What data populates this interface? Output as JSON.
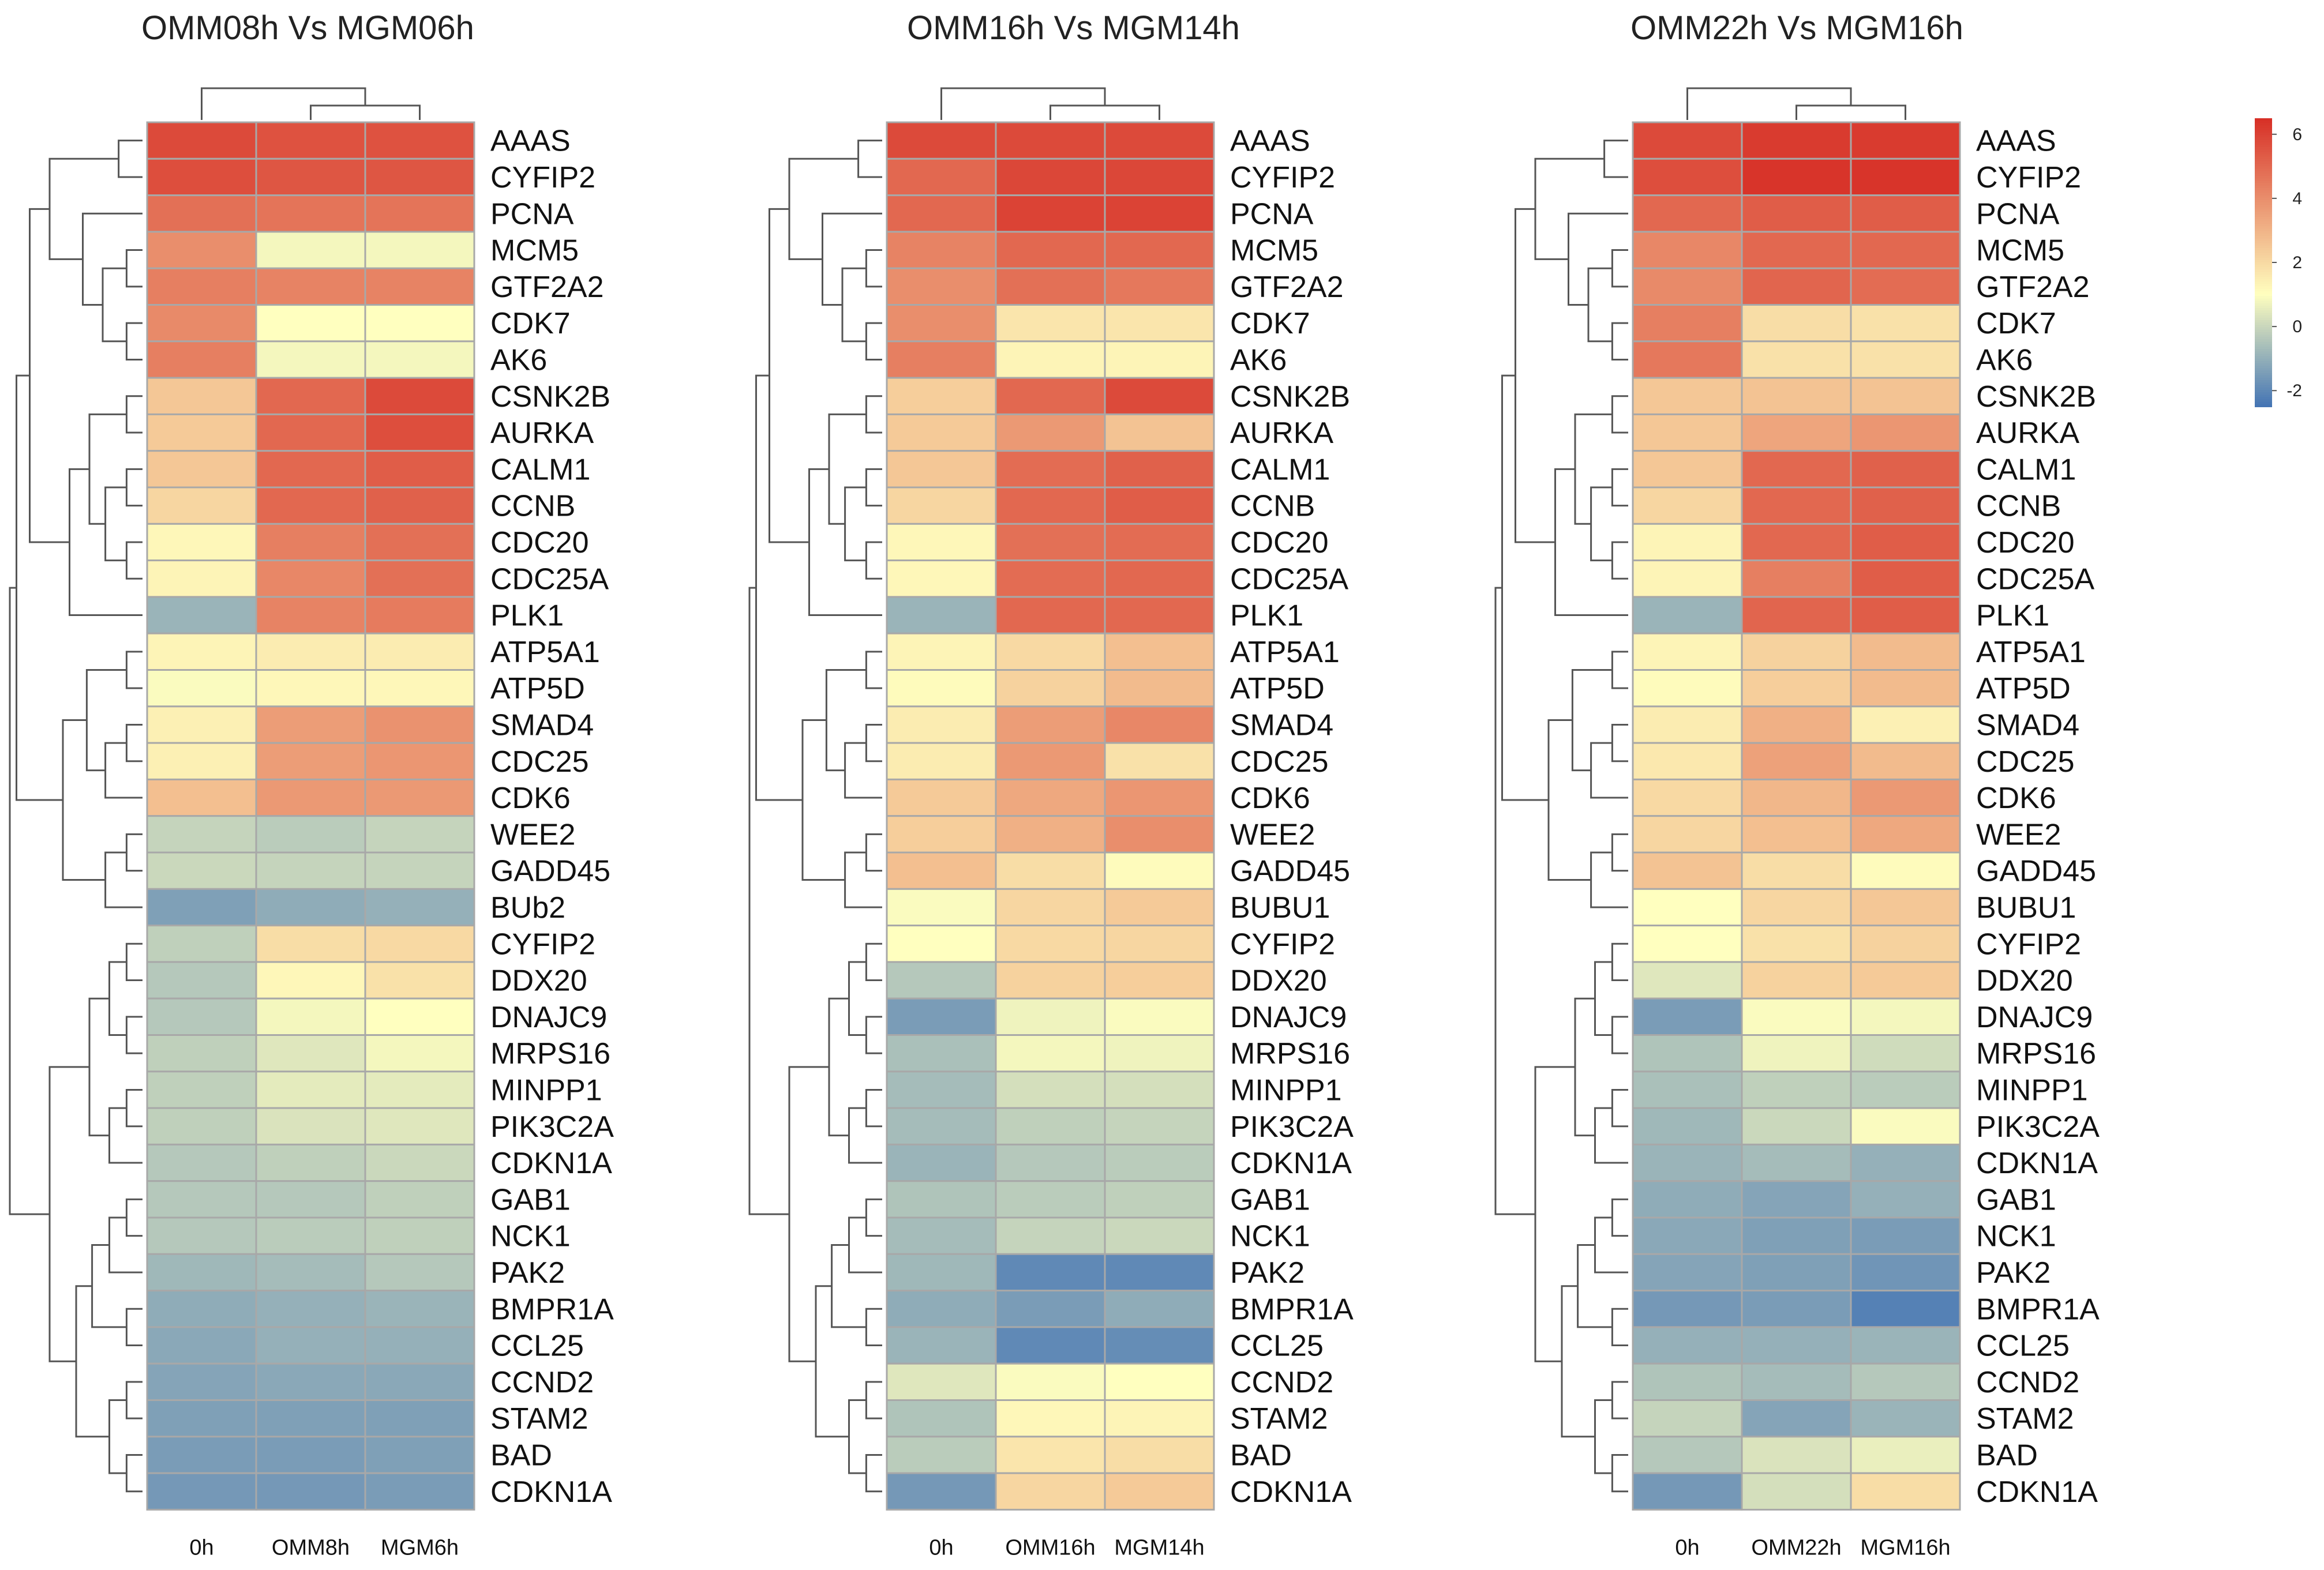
{
  "chart_data": [
    {
      "type": "heatmap",
      "title": "OMM08h Vs MGM06h",
      "columns": [
        "0h",
        "OMM8h",
        "MGM6h"
      ],
      "rows": [
        "AAAS",
        "CYFIP2",
        "PCNA",
        "MCM5",
        "GTF2A2",
        "CDK7",
        "AK6",
        "CSNK2B",
        "AURKA",
        "CALM1",
        "CCNB",
        "CDC20",
        "CDC25A",
        "PLK1",
        "ATP5A1",
        "ATP5D",
        "SMAD4",
        "CDC25",
        "CDK6",
        "WEE2",
        "GADD45",
        "BUb2",
        "CYFIP2",
        "DDX20",
        "DNAJC9",
        "MRPS16",
        "MINPP1",
        "PIK3C2A",
        "CDKN1A",
        "GAB1",
        "NCK1",
        "PAK2",
        "BMPR1A",
        "CCL25",
        "CCND2",
        "STAM2",
        "BAD",
        "CDKN1A"
      ],
      "values": [
        [
          5.8,
          5.6,
          5.6
        ],
        [
          5.7,
          5.5,
          5.5
        ],
        [
          4.8,
          4.7,
          4.7
        ],
        [
          4.0,
          0.8,
          0.8
        ],
        [
          4.4,
          4.3,
          4.3
        ],
        [
          4.1,
          1.0,
          1.0
        ],
        [
          4.4,
          0.8,
          0.8
        ],
        [
          2.5,
          5.0,
          5.8
        ],
        [
          2.4,
          5.0,
          5.7
        ],
        [
          2.5,
          5.0,
          5.3
        ],
        [
          2.1,
          5.0,
          5.2
        ],
        [
          1.2,
          4.4,
          4.8
        ],
        [
          1.3,
          4.2,
          4.8
        ],
        [
          -0.9,
          4.3,
          4.5
        ],
        [
          1.3,
          1.5,
          1.5
        ],
        [
          0.9,
          1.2,
          1.2
        ],
        [
          1.4,
          3.6,
          3.9
        ],
        [
          1.4,
          3.6,
          3.8
        ],
        [
          2.7,
          3.7,
          3.7
        ],
        [
          -0.1,
          -0.3,
          -0.1
        ],
        [
          0.0,
          -0.1,
          -0.1
        ],
        [
          -1.4,
          -1.1,
          -1.0
        ],
        [
          -0.2,
          1.9,
          2.0
        ],
        [
          -0.4,
          1.2,
          1.8
        ],
        [
          -0.4,
          0.8,
          1.0
        ],
        [
          -0.2,
          0.4,
          0.8
        ],
        [
          -0.2,
          0.5,
          0.5
        ],
        [
          -0.2,
          0.3,
          0.4
        ],
        [
          -0.4,
          -0.2,
          0.0
        ],
        [
          -0.4,
          -0.4,
          -0.2
        ],
        [
          -0.4,
          -0.3,
          -0.2
        ],
        [
          -0.8,
          -0.7,
          -0.4
        ],
        [
          -1.1,
          -1.0,
          -0.9
        ],
        [
          -1.2,
          -1.0,
          -1.0
        ],
        [
          -1.3,
          -1.2,
          -1.2
        ],
        [
          -1.4,
          -1.4,
          -1.4
        ],
        [
          -1.5,
          -1.5,
          -1.4
        ],
        [
          -1.6,
          -1.6,
          -1.5
        ]
      ]
    },
    {
      "type": "heatmap",
      "title": "OMM16h Vs MGM14h",
      "columns": [
        "0h",
        "OMM16h",
        "MGM14h"
      ],
      "rows": [
        "AAAS",
        "CYFIP2",
        "PCNA",
        "MCM5",
        "GTF2A2",
        "CDK7",
        "AK6",
        "CSNK2B",
        "AURKA",
        "CALM1",
        "CCNB",
        "CDC20",
        "CDC25A",
        "PLK1",
        "ATP5A1",
        "ATP5D",
        "SMAD4",
        "CDC25",
        "CDK6",
        "WEE2",
        "GADD45",
        "BUBU1",
        "CYFIP2",
        "DDX20",
        "DNAJC9",
        "MRPS16",
        "MINPP1",
        "PIK3C2A",
        "CDKN1A",
        "GAB1",
        "NCK1",
        "PAK2",
        "BMPR1A",
        "CCL25",
        "CCND2",
        "STAM2",
        "BAD",
        "CDKN1A"
      ],
      "values": [
        [
          5.8,
          5.8,
          5.8
        ],
        [
          5.0,
          5.9,
          5.9
        ],
        [
          5.0,
          6.0,
          6.0
        ],
        [
          4.3,
          5.0,
          5.0
        ],
        [
          4.0,
          4.8,
          4.6
        ],
        [
          4.0,
          1.7,
          1.7
        ],
        [
          4.4,
          1.3,
          1.3
        ],
        [
          2.3,
          5.0,
          5.8
        ],
        [
          2.4,
          3.7,
          2.6
        ],
        [
          2.5,
          4.9,
          5.2
        ],
        [
          2.1,
          5.0,
          5.3
        ],
        [
          1.2,
          4.8,
          4.9
        ],
        [
          1.2,
          4.9,
          5.0
        ],
        [
          -0.9,
          5.0,
          5.0
        ],
        [
          1.3,
          2.0,
          2.7
        ],
        [
          1.1,
          2.2,
          2.8
        ],
        [
          1.5,
          3.6,
          4.2
        ],
        [
          1.5,
          3.7,
          1.8
        ],
        [
          2.4,
          3.3,
          3.8
        ],
        [
          2.3,
          3.1,
          4.0
        ],
        [
          2.7,
          1.9,
          1.1
        ],
        [
          0.9,
          2.1,
          2.4
        ],
        [
          1.0,
          2.0,
          2.1
        ],
        [
          -0.4,
          2.2,
          2.3
        ],
        [
          -1.5,
          0.7,
          0.9
        ],
        [
          -0.6,
          0.8,
          0.7
        ],
        [
          -0.7,
          0.2,
          0.2
        ],
        [
          -0.7,
          -0.2,
          -0.1
        ],
        [
          -0.9,
          -0.4,
          -0.3
        ],
        [
          -0.5,
          -0.3,
          -0.2
        ],
        [
          -0.7,
          -0.1,
          0.0
        ],
        [
          -0.8,
          -2.0,
          -2.0
        ],
        [
          -1.1,
          -1.5,
          -1.1
        ],
        [
          -0.9,
          -2.0,
          -1.9
        ],
        [
          0.4,
          0.9,
          1.0
        ],
        [
          -0.5,
          1.2,
          1.3
        ],
        [
          -0.3,
          1.7,
          1.9
        ],
        [
          -1.6,
          2.1,
          2.4
        ]
      ]
    },
    {
      "type": "heatmap",
      "title": "OMM22h Vs MGM16h",
      "columns": [
        "0h",
        "OMM22h",
        "MGM16h"
      ],
      "rows": [
        "AAAS",
        "CYFIP2",
        "PCNA",
        "MCM5",
        "GTF2A2",
        "CDK7",
        "AK6",
        "CSNK2B",
        "AURKA",
        "CALM1",
        "CCNB",
        "CDC20",
        "CDC25A",
        "PLK1",
        "ATP5A1",
        "ATP5D",
        "SMAD4",
        "CDC25",
        "CDK6",
        "WEE2",
        "GADD45",
        "BUBU1",
        "CYFIP2",
        "DDX20",
        "DNAJC9",
        "MRPS16",
        "MINPP1",
        "PIK3C2A",
        "CDKN1A",
        "GAB1",
        "NCK1",
        "PAK2",
        "BMPR1A",
        "CCL25",
        "CCND2",
        "STAM2",
        "BAD",
        "CDKN1A"
      ],
      "values": [
        [
          5.8,
          6.2,
          6.2
        ],
        [
          5.7,
          6.4,
          6.4
        ],
        [
          5.0,
          5.3,
          5.3
        ],
        [
          4.2,
          5.0,
          5.0
        ],
        [
          4.1,
          5.1,
          4.9
        ],
        [
          4.4,
          1.9,
          1.8
        ],
        [
          4.6,
          1.8,
          1.8
        ],
        [
          2.5,
          2.6,
          2.6
        ],
        [
          2.5,
          3.4,
          3.8
        ],
        [
          2.5,
          5.0,
          5.2
        ],
        [
          2.1,
          5.0,
          5.2
        ],
        [
          1.3,
          5.0,
          5.3
        ],
        [
          1.3,
          4.4,
          5.3
        ],
        [
          -0.9,
          5.1,
          5.3
        ],
        [
          1.3,
          2.2,
          2.8
        ],
        [
          1.1,
          2.3,
          2.8
        ],
        [
          1.5,
          3.1,
          1.4
        ],
        [
          1.6,
          3.5,
          2.8
        ],
        [
          2.0,
          2.9,
          3.7
        ],
        [
          2.1,
          2.7,
          3.3
        ],
        [
          2.6,
          1.9,
          1.1
        ],
        [
          1.0,
          2.1,
          2.5
        ],
        [
          1.0,
          1.8,
          2.2
        ],
        [
          0.4,
          2.2,
          2.4
        ],
        [
          -1.5,
          0.9,
          0.8
        ],
        [
          -0.5,
          0.7,
          0.1
        ],
        [
          -0.6,
          -0.2,
          -0.3
        ],
        [
          -0.8,
          0.0,
          0.9
        ],
        [
          -0.9,
          -0.7,
          -1.0
        ],
        [
          -1.1,
          -1.3,
          -1.0
        ],
        [
          -1.2,
          -1.4,
          -1.5
        ],
        [
          -1.3,
          -1.4,
          -1.7
        ],
        [
          -1.6,
          -1.5,
          -2.2
        ],
        [
          -1.0,
          -1.0,
          -0.9
        ],
        [
          -0.5,
          -0.7,
          -0.4
        ],
        [
          -0.1,
          -1.3,
          -0.9
        ],
        [
          -0.4,
          0.3,
          0.6
        ],
        [
          -1.6,
          0.2,
          1.9
        ]
      ]
    }
  ],
  "legend": {
    "ticks": [
      6,
      4,
      2,
      0,
      -2
    ],
    "tick_labels": [
      "6",
      "4",
      "2",
      "0",
      "-2"
    ],
    "range": [
      -2.5,
      6.5
    ]
  },
  "colors": {
    "low": "#4575b4",
    "mid": "#ffffbf",
    "high": "#d73027"
  }
}
